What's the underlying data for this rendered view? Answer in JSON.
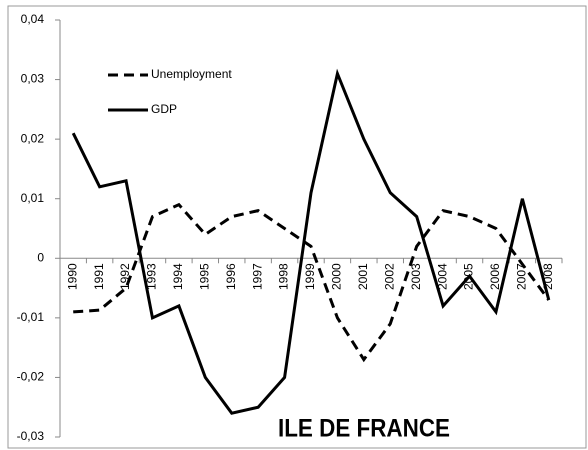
{
  "chart_data": {
    "type": "line",
    "annotation": "ILE DE FRANCE",
    "categories": [
      "1990",
      "1991",
      "1992",
      "1993",
      "1994",
      "1995",
      "1996",
      "1997",
      "1998",
      "1999",
      "2000",
      "2001",
      "2002",
      "2003",
      "2004",
      "2005",
      "2006",
      "2007",
      "2008"
    ],
    "series": [
      {
        "name": "Unemployment",
        "color": "#000000",
        "line_style": "dashed",
        "values": [
          -0.009,
          -0.0087,
          -0.005,
          0.007,
          0.009,
          0.004,
          0.007,
          0.008,
          0.005,
          0.002,
          -0.01,
          -0.017,
          -0.011,
          0.002,
          0.008,
          0.007,
          0.005,
          -0.001,
          -0.007
        ]
      },
      {
        "name": "GDP",
        "color": "#000000",
        "line_style": "solid",
        "values": [
          0.021,
          0.012,
          0.013,
          -0.01,
          -0.008,
          -0.02,
          -0.026,
          -0.025,
          -0.02,
          0.011,
          0.031,
          0.02,
          0.011,
          0.007,
          -0.008,
          -0.003,
          -0.009,
          0.01,
          -0.007
        ]
      }
    ],
    "ylim": [
      -0.03,
      0.04
    ],
    "yticks": [
      {
        "value": 0.04,
        "label": "0,04"
      },
      {
        "value": 0.03,
        "label": "0,03"
      },
      {
        "value": 0.02,
        "label": "0,02"
      },
      {
        "value": 0.01,
        "label": "0,01"
      },
      0,
      {
        "value": -0.01,
        "label": "-0,01"
      },
      {
        "value": -0.02,
        "label": "-0,02"
      },
      {
        "value": -0.03,
        "label": "-0,03"
      }
    ],
    "legend": "upper left"
  }
}
